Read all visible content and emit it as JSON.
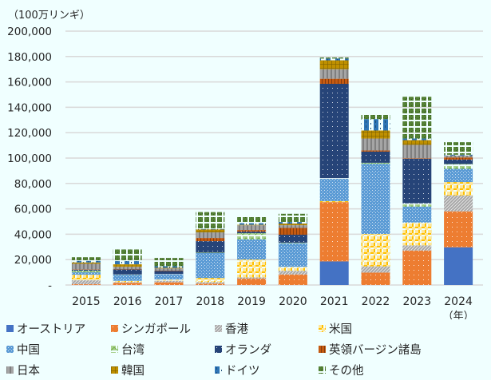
{
  "chart_data": {
    "type": "bar",
    "stacked": true,
    "title": "",
    "ylabel": "（100万リンギ）",
    "xlabel": "（年）",
    "ylim": [
      0,
      200000
    ],
    "yticks": [
      0,
      20000,
      40000,
      60000,
      80000,
      100000,
      120000,
      140000,
      160000,
      180000,
      200000
    ],
    "ytick_labels": [
      "-",
      "20,000",
      "40,000",
      "60,000",
      "80,000",
      "100,000",
      "120,000",
      "140,000",
      "160,000",
      "180,000",
      "200,000"
    ],
    "grid": true,
    "legend_position": "bottom",
    "categories": [
      "2015",
      "2016",
      "2017",
      "2018",
      "2019",
      "2020",
      "2021",
      "2022",
      "2023",
      "2024"
    ],
    "series": [
      {
        "name": "オーストリア",
        "color": "#4472C4",
        "pattern": "solid",
        "values": [
          0,
          0,
          0,
          0,
          0,
          0,
          18600,
          0,
          0,
          29700
        ]
      },
      {
        "name": "シンガポール",
        "color": "#ED7D31",
        "pattern": "dots",
        "values": [
          600,
          1700,
          2100,
          1000,
          5000,
          8300,
          46700,
          9800,
          27200,
          28300
        ]
      },
      {
        "name": "香港",
        "color": "#A5A5A5",
        "pattern": "diagonal",
        "values": [
          3100,
          600,
          1250,
          1250,
          1000,
          2900,
          0,
          4900,
          4000,
          12600
        ]
      },
      {
        "name": "米国",
        "color": "#FFC000",
        "pattern": "checker",
        "values": [
          4400,
          1000,
          1000,
          3300,
          14000,
          3100,
          800,
          25500,
          18000,
          10500
        ]
      },
      {
        "name": "中国",
        "color": "#5B9BD5",
        "pattern": "dots-dense",
        "values": [
          1900,
          4800,
          4000,
          19600,
          16000,
          18500,
          17500,
          55300,
          12600,
          10400
        ]
      },
      {
        "name": "台湾",
        "color": "#A9D18E",
        "pattern": "zigzag",
        "values": [
          1250,
          200,
          300,
          400,
          4800,
          500,
          600,
          800,
          2500,
          3800
        ]
      },
      {
        "name": "オランダ",
        "color": "#264478",
        "pattern": "dots",
        "values": [
          800,
          4000,
          2500,
          9000,
          1250,
          6300,
          74300,
          8800,
          35200,
          3500
        ]
      },
      {
        "name": "英領バージン諸島",
        "color": "#C55A11",
        "pattern": "vstripes",
        "values": [
          300,
          200,
          200,
          2500,
          1250,
          5400,
          4000,
          900,
          400,
          1700
        ]
      },
      {
        "name": "日本",
        "color": "#7F7F7F",
        "pattern": "vstripes-wide",
        "values": [
          4400,
          1900,
          1700,
          4400,
          3750,
          2100,
          7500,
          9400,
          10500,
          1500
        ]
      },
      {
        "name": "韓国",
        "color": "#BF9000",
        "pattern": "grid",
        "values": [
          1000,
          1900,
          500,
          2300,
          400,
          1250,
          7000,
          6300,
          3700,
          0
        ]
      },
      {
        "name": "ドイツ",
        "color": "#2E75B6",
        "pattern": "dashes",
        "values": [
          1250,
          2500,
          1250,
          400,
          1250,
          1250,
          1400,
          9000,
          1300,
          600
        ]
      },
      {
        "name": "その他",
        "color": "#548235",
        "pattern": "dots-grid",
        "values": [
          2900,
          9200,
          6500,
          13300,
          4800,
          6500,
          1300,
          4400,
          32900,
          9900
        ]
      }
    ]
  }
}
